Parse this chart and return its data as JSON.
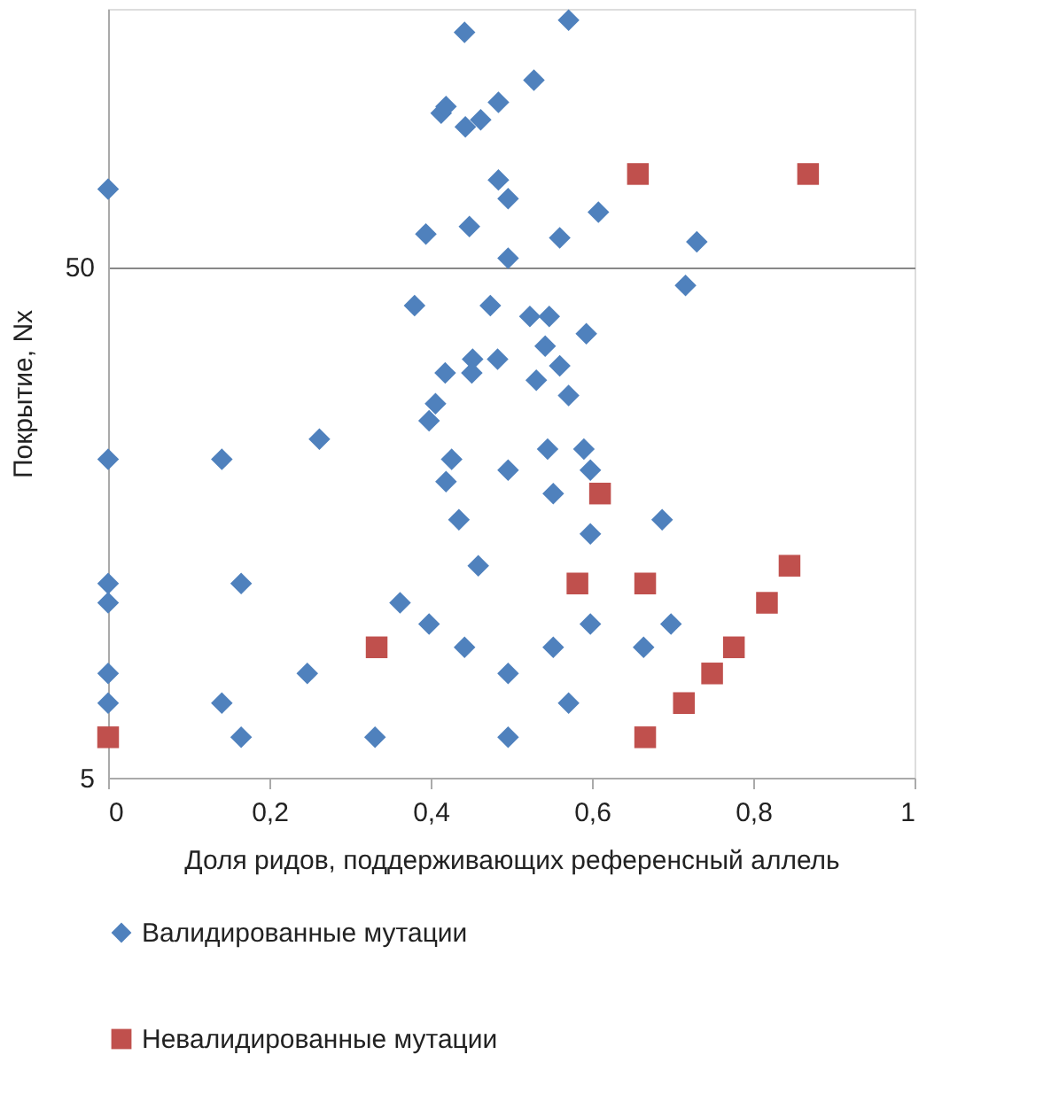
{
  "chart_data": {
    "type": "scatter",
    "xlabel": "Доля ридов, поддерживающих референсный аллель",
    "ylabel": "Покрытие, Nx",
    "xlim": [
      0,
      1
    ],
    "xticks": [
      {
        "value": 0,
        "label": "0"
      },
      {
        "value": 0.2,
        "label": "0,2"
      },
      {
        "value": 0.4,
        "label": "0,4"
      },
      {
        "value": 0.6,
        "label": "0,6"
      },
      {
        "value": 0.8,
        "label": "0,8"
      },
      {
        "value": 1,
        "label": "1"
      }
    ],
    "ylim": [
      5,
      160
    ],
    "yticks": [
      5,
      50
    ],
    "log": "y",
    "grid": "y",
    "legend": "bottom",
    "series": [
      {
        "name": "Валидированные мутации",
        "color": "#4f81bd",
        "marker": "diamond",
        "x": [
          0,
          0.442,
          0.413,
          0.419,
          0.484,
          0.462,
          0.443,
          0.484,
          0.496,
          0.394,
          0.448,
          0.496,
          0.38,
          0.474,
          0.418,
          0.452,
          0.451,
          0.483,
          0.406,
          0.571,
          0.528,
          0.608,
          0.56,
          0.73,
          0.716,
          0.523,
          0.547,
          0.593,
          0.542,
          0.56,
          0.531,
          0.571,
          0.398,
          0.262,
          0,
          0.141,
          0.426,
          0.419,
          0.496,
          0.435,
          0.459,
          0,
          0,
          0.165,
          0.362,
          0.398,
          0.442,
          0,
          0.247,
          0.496,
          0,
          0.141,
          0.165,
          0.331,
          0.496,
          0.545,
          0.59,
          0.598,
          0.552,
          0.687,
          0.598,
          0.598,
          0.698,
          0.552,
          0.664,
          0.571
        ],
        "values": [
          71,
          144,
          100,
          103,
          105,
          97,
          94,
          74,
          68,
          58,
          60,
          52,
          42,
          42,
          31,
          33,
          31,
          33,
          27,
          152,
          116,
          64,
          57,
          56,
          46,
          40,
          40,
          37,
          35,
          32,
          30,
          28,
          25,
          23,
          21,
          21,
          21,
          19,
          20,
          16,
          13,
          12,
          11,
          12,
          11,
          10,
          9,
          8,
          8,
          8,
          7,
          7,
          6,
          6,
          6,
          22,
          22,
          20,
          18,
          16,
          15,
          10,
          10,
          9,
          9,
          7
        ]
      },
      {
        "name": "Невалидированные мутации",
        "color": "#c0504d",
        "marker": "square",
        "x": [
          0.657,
          0.868,
          0.333,
          0,
          0.61,
          0.582,
          0.666,
          0.845,
          0.817,
          0.776,
          0.749,
          0.714,
          0.666
        ],
        "values": [
          76,
          76,
          9,
          6,
          18,
          12,
          12,
          13,
          11,
          9,
          8,
          7,
          6
        ]
      }
    ]
  }
}
